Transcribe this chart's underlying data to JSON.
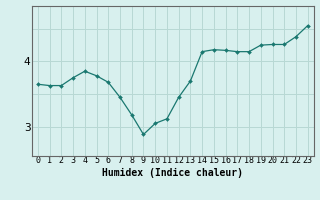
{
  "title": "",
  "xlabel": "Humidex (Indice chaleur)",
  "x_values": [
    0,
    1,
    2,
    3,
    4,
    5,
    6,
    7,
    8,
    9,
    10,
    11,
    12,
    13,
    14,
    15,
    16,
    17,
    18,
    19,
    20,
    21,
    22,
    23
  ],
  "y_values": [
    3.65,
    3.63,
    3.63,
    3.75,
    3.85,
    3.78,
    3.68,
    3.45,
    3.18,
    2.88,
    3.05,
    3.12,
    3.45,
    3.7,
    4.15,
    4.18,
    4.17,
    4.15,
    4.15,
    4.25,
    4.26,
    4.26,
    4.38,
    4.55
  ],
  "line_color": "#1a7870",
  "marker_color": "#1a7870",
  "bg_color": "#d8f0ee",
  "grid_color": "#b8d8d4",
  "yticks": [
    3,
    4
  ],
  "ylim": [
    2.55,
    4.85
  ],
  "xlim": [
    -0.5,
    23.5
  ],
  "label_fontsize": 7,
  "tick_fontsize": 6
}
